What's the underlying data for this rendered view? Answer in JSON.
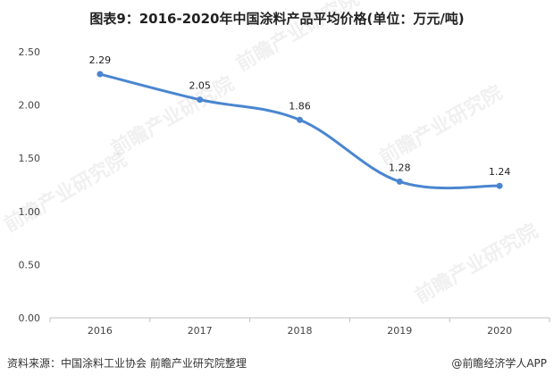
{
  "title": "图表9：2016-2020年中国涂料产品平均价格(单位：万元/吨)",
  "footer": {
    "source": "资料来源：中国涂料工业协会 前瞻产业研究院整理",
    "brand": "@前瞻经济学人APP"
  },
  "watermark": "前瞻产业研究院",
  "chart_data": {
    "type": "line",
    "title": "图表9：2016-2020年中国涂料产品平均价格(单位：万元/吨)",
    "categories": [
      "2016",
      "2017",
      "2018",
      "2019",
      "2020"
    ],
    "values": [
      2.29,
      2.05,
      1.86,
      1.28,
      1.24
    ],
    "data_labels": [
      "2.29",
      "2.05",
      "1.86",
      "1.28",
      "1.24"
    ],
    "yticks": [
      "0.00",
      "0.50",
      "1.00",
      "1.50",
      "2.00",
      "2.50"
    ],
    "ylim": [
      0,
      2.5
    ],
    "line_color": "#4a86d0",
    "grid": false,
    "legend": "none"
  }
}
